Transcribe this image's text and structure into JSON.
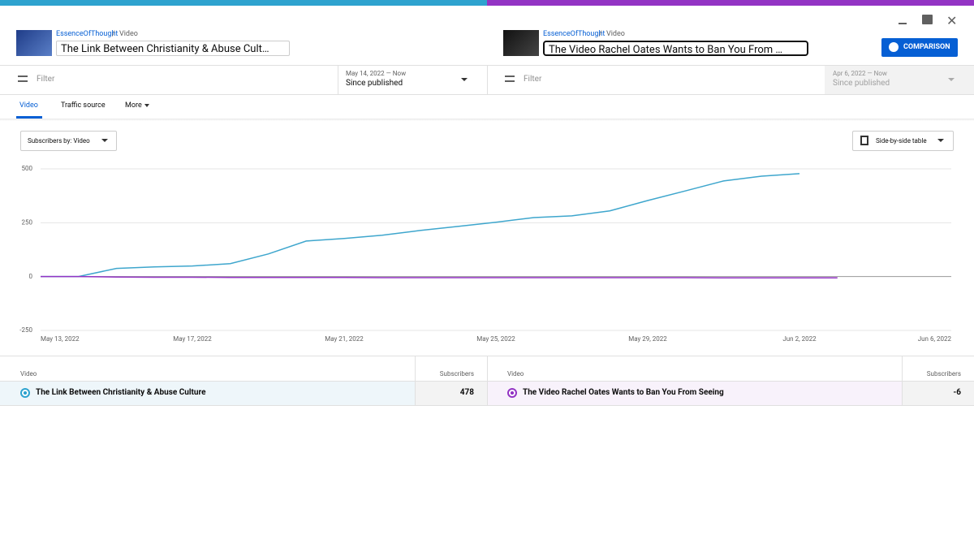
{
  "left": {
    "channel": "EssenceOfThought",
    "separator": "/",
    "crumb": "Video",
    "title": "The Link Between Christianity & Abuse Culture",
    "filter": "Filter",
    "date_range": "May 14, 2022 — Now",
    "period": "Since published"
  },
  "right": {
    "channel": "EssenceOfThought",
    "separator": "/",
    "crumb": "Video",
    "title": "The Video Rachel Oates Wants to Ban You From Seeing",
    "filter": "Filter",
    "date_range": "Apr 6, 2022 — Now",
    "period": "Since published"
  },
  "button": "COMPARISON",
  "tabs": [
    "Video",
    "Traffic source",
    "More"
  ],
  "metric_dropdown": "Subscribers by: Video",
  "view_dropdown": "Side-by-side table",
  "table": {
    "columns": [
      "Video",
      "Subscribers"
    ],
    "left_total": 478,
    "right_total": -6
  },
  "chart_data": {
    "type": "line",
    "categories": [
      "May 13, 2022",
      null,
      null,
      null,
      "May 17, 2022",
      null,
      null,
      null,
      "May 21, 2022",
      null,
      null,
      null,
      "May 25, 2022",
      null,
      null,
      null,
      "May 29, 2022",
      null,
      null,
      null,
      "Jun 2, 2022",
      null,
      null,
      null,
      "Jun 6, 2022"
    ],
    "series": [
      {
        "name": "The Link Between Christianity & Abuse Culture",
        "color": "#3ea6cd",
        "values": [
          0,
          0,
          38,
          45,
          49,
          60,
          105,
          165,
          177,
          192,
          214,
          233,
          252,
          274,
          282,
          305,
          353,
          398,
          444,
          466,
          478,
          null,
          null,
          null,
          null
        ]
      },
      {
        "name": "The Video Rachel Oates Wants to Ban You From Seeing",
        "color": "#9334c4",
        "values": [
          0,
          0,
          -2,
          -3,
          -3,
          -4,
          -4,
          -4,
          -4,
          -5,
          -5,
          -5,
          -5,
          -5,
          -5,
          -5,
          -5,
          -5,
          -6,
          -6,
          -6,
          -6,
          null,
          null,
          null
        ]
      }
    ],
    "ylim": [
      -250,
      500
    ],
    "yticks": [
      -250,
      0,
      250,
      500
    ],
    "grid": true
  }
}
